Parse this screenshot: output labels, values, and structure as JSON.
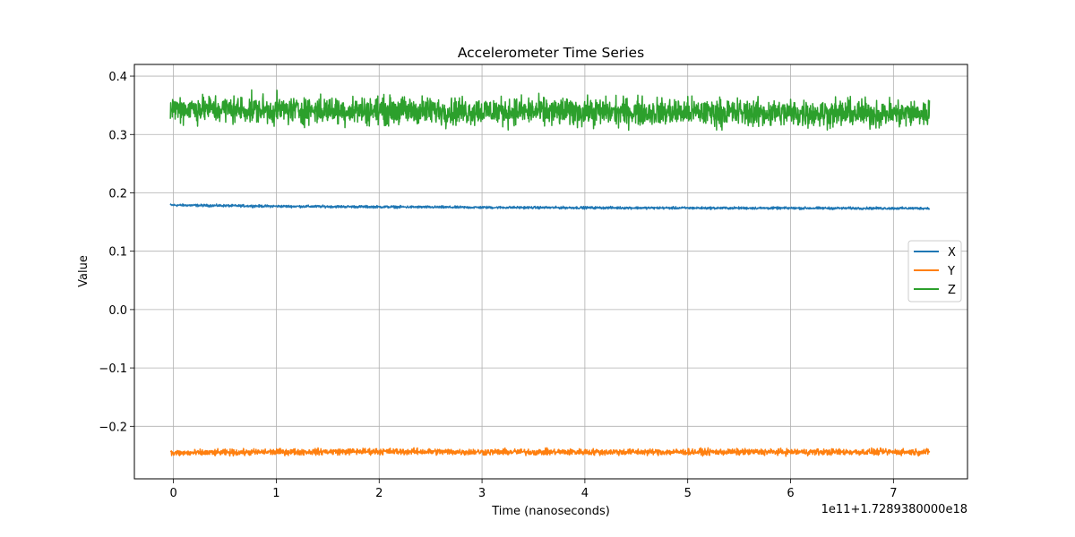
{
  "chart_data": {
    "type": "line",
    "title": "Accelerometer Time Series",
    "xlabel": "Time (nanoseconds)",
    "ylabel": "Value",
    "x_offset_label": "1e11+1.7289380000e18",
    "xlim": [
      -0.38,
      7.72
    ],
    "ylim": [
      -0.29,
      0.42
    ],
    "x_ticks": [
      0,
      1,
      2,
      3,
      4,
      5,
      6,
      7
    ],
    "x_tick_labels": [
      "0",
      "1",
      "2",
      "3",
      "4",
      "5",
      "6",
      "7"
    ],
    "y_ticks": [
      -0.2,
      -0.1,
      0.0,
      0.1,
      0.2,
      0.3,
      0.4
    ],
    "y_tick_labels": [
      "−0.2",
      "−0.1",
      "0.0",
      "0.1",
      "0.2",
      "0.3",
      "0.4"
    ],
    "x_range": [
      -0.03,
      7.35
    ],
    "grid": true,
    "legend_position": "center-right",
    "series": [
      {
        "name": "X",
        "color": "#1f77b4",
        "x": [
          -0.03,
          0.5,
          1.0,
          2.0,
          3.0,
          4.0,
          5.0,
          6.0,
          7.0,
          7.35
        ],
        "values": [
          0.179,
          0.178,
          0.177,
          0.176,
          0.175,
          0.1745,
          0.174,
          0.1738,
          0.1735,
          0.1735
        ],
        "noise_amplitude": 0.003
      },
      {
        "name": "Y",
        "color": "#ff7f0e",
        "x": [
          -0.03,
          0.5,
          1.0,
          2.0,
          3.0,
          4.0,
          5.0,
          6.0,
          7.0,
          7.35
        ],
        "values": [
          -0.246,
          -0.245,
          -0.244,
          -0.243,
          -0.244,
          -0.244,
          -0.244,
          -0.244,
          -0.244,
          -0.244
        ],
        "noise_amplitude": 0.008
      },
      {
        "name": "Z",
        "color": "#2ca02c",
        "x": [
          -0.03,
          0.5,
          1.0,
          2.0,
          3.0,
          4.0,
          5.0,
          6.0,
          7.0,
          7.35
        ],
        "values": [
          0.345,
          0.343,
          0.342,
          0.341,
          0.34,
          0.339,
          0.338,
          0.337,
          0.336,
          0.336
        ],
        "noise_amplitude": 0.035
      }
    ]
  }
}
